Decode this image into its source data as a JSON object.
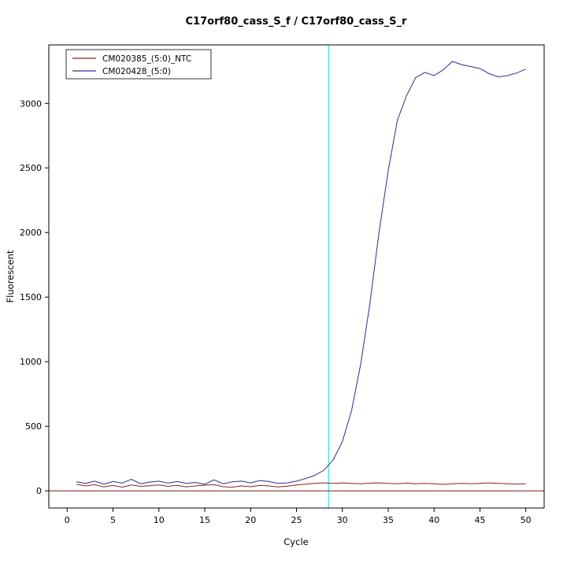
{
  "chart_data": {
    "type": "line",
    "title": "C17orf80_cass_S_f / C17orf80_cass_S_r",
    "xlabel": "Cycle",
    "ylabel": "Fluorescent",
    "xlim": [
      0,
      50
    ],
    "ylim": [
      0,
      3320
    ],
    "xticks": [
      0,
      5,
      10,
      15,
      20,
      25,
      30,
      35,
      40,
      45,
      50
    ],
    "yticks": [
      0,
      500,
      1000,
      1500,
      2000,
      2500,
      3000
    ],
    "grid": "off",
    "legend_position": "top-left",
    "threshold_line_x": 28.5,
    "baseline_y": 0,
    "colors": {
      "ntc": "#8b2323",
      "sample": "#2d2d8f",
      "threshold": "#00ffff",
      "baseline": "#7f1f1f"
    },
    "x": [
      1,
      2,
      3,
      4,
      5,
      6,
      7,
      8,
      9,
      10,
      11,
      12,
      13,
      14,
      15,
      16,
      17,
      18,
      19,
      20,
      21,
      22,
      23,
      24,
      25,
      26,
      27,
      28,
      29,
      30,
      31,
      32,
      33,
      34,
      35,
      36,
      37,
      38,
      39,
      40,
      41,
      42,
      43,
      44,
      45,
      46,
      47,
      48,
      49,
      50
    ],
    "series": [
      {
        "name": "CM020385_(5:0)_NTC",
        "color_key": "ntc",
        "values": [
          50,
          38,
          48,
          30,
          42,
          28,
          45,
          35,
          40,
          45,
          35,
          42,
          30,
          38,
          44,
          48,
          32,
          28,
          38,
          32,
          42,
          38,
          30,
          36,
          45,
          52,
          58,
          62,
          58,
          62,
          58,
          55,
          60,
          62,
          58,
          55,
          60,
          55,
          58,
          55,
          50,
          55,
          58,
          55,
          58,
          62,
          58,
          55,
          52,
          55
        ]
      },
      {
        "name": "CM020428_(5:0)",
        "color_key": "sample",
        "values": [
          70,
          58,
          75,
          52,
          72,
          60,
          90,
          55,
          68,
          75,
          60,
          72,
          58,
          65,
          50,
          85,
          55,
          70,
          75,
          62,
          80,
          72,
          58,
          62,
          75,
          95,
          120,
          160,
          240,
          380,
          620,
          980,
          1450,
          2000,
          2480,
          2870,
          3060,
          3200,
          3240,
          3215,
          3260,
          3325,
          3300,
          3285,
          3270,
          3230,
          3205,
          3215,
          3235,
          3265
        ]
      }
    ]
  }
}
